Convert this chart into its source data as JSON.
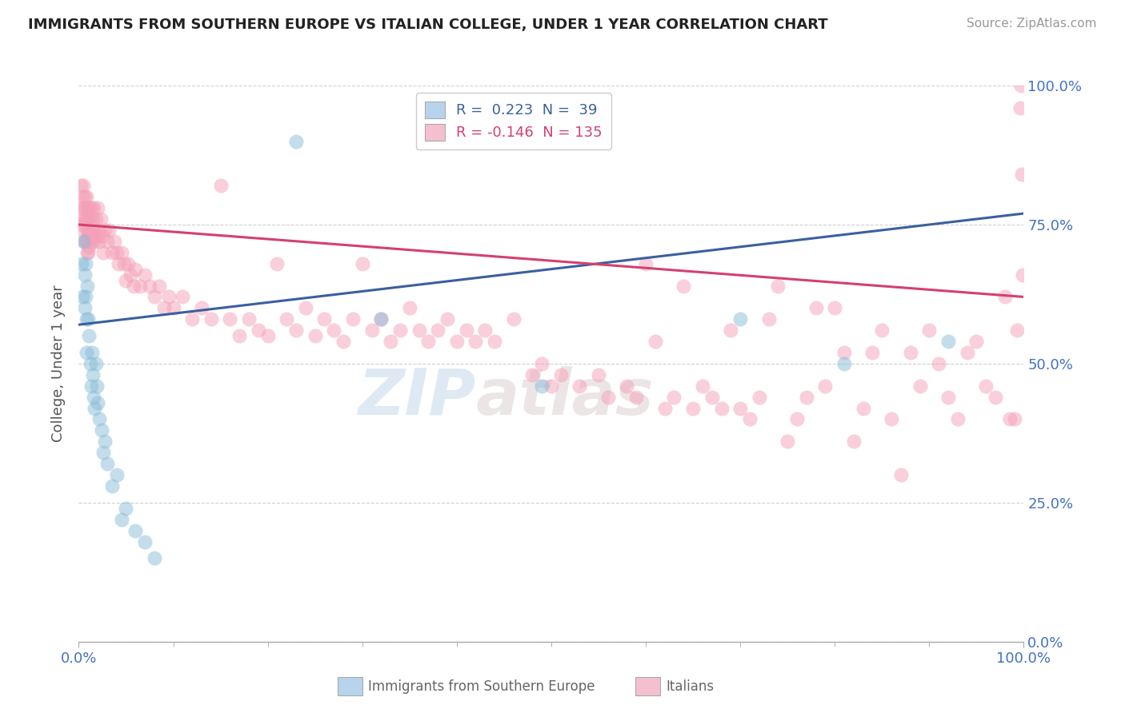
{
  "title": "IMMIGRANTS FROM SOUTHERN EUROPE VS ITALIAN COLLEGE, UNDER 1 YEAR CORRELATION CHART",
  "source": "Source: ZipAtlas.com",
  "ylabel": "College, Under 1 year",
  "xlim": [
    0.0,
    1.0
  ],
  "ylim": [
    0.0,
    1.0
  ],
  "ytick_values": [
    0.0,
    0.25,
    0.5,
    0.75,
    1.0
  ],
  "watermark_zip": "ZIP",
  "watermark_atlas": "atlas",
  "blue_scatter": [
    [
      0.003,
      0.68
    ],
    [
      0.004,
      0.62
    ],
    [
      0.005,
      0.72
    ],
    [
      0.006,
      0.66
    ],
    [
      0.006,
      0.6
    ],
    [
      0.007,
      0.68
    ],
    [
      0.007,
      0.62
    ],
    [
      0.008,
      0.58
    ],
    [
      0.008,
      0.52
    ],
    [
      0.009,
      0.64
    ],
    [
      0.01,
      0.58
    ],
    [
      0.011,
      0.55
    ],
    [
      0.012,
      0.5
    ],
    [
      0.013,
      0.46
    ],
    [
      0.014,
      0.52
    ],
    [
      0.015,
      0.48
    ],
    [
      0.016,
      0.44
    ],
    [
      0.017,
      0.42
    ],
    [
      0.018,
      0.5
    ],
    [
      0.019,
      0.46
    ],
    [
      0.02,
      0.43
    ],
    [
      0.022,
      0.4
    ],
    [
      0.024,
      0.38
    ],
    [
      0.026,
      0.34
    ],
    [
      0.028,
      0.36
    ],
    [
      0.03,
      0.32
    ],
    [
      0.035,
      0.28
    ],
    [
      0.04,
      0.3
    ],
    [
      0.045,
      0.22
    ],
    [
      0.05,
      0.24
    ],
    [
      0.06,
      0.2
    ],
    [
      0.07,
      0.18
    ],
    [
      0.08,
      0.15
    ],
    [
      0.23,
      0.9
    ],
    [
      0.32,
      0.58
    ],
    [
      0.49,
      0.46
    ],
    [
      0.7,
      0.58
    ],
    [
      0.81,
      0.5
    ],
    [
      0.92,
      0.54
    ]
  ],
  "pink_scatter": [
    [
      0.002,
      0.82
    ],
    [
      0.003,
      0.78
    ],
    [
      0.003,
      0.75
    ],
    [
      0.004,
      0.8
    ],
    [
      0.004,
      0.76
    ],
    [
      0.005,
      0.82
    ],
    [
      0.005,
      0.78
    ],
    [
      0.005,
      0.74
    ],
    [
      0.006,
      0.8
    ],
    [
      0.006,
      0.76
    ],
    [
      0.006,
      0.72
    ],
    [
      0.007,
      0.78
    ],
    [
      0.007,
      0.75
    ],
    [
      0.007,
      0.72
    ],
    [
      0.008,
      0.8
    ],
    [
      0.008,
      0.76
    ],
    [
      0.008,
      0.72
    ],
    [
      0.009,
      0.78
    ],
    [
      0.009,
      0.74
    ],
    [
      0.009,
      0.7
    ],
    [
      0.01,
      0.76
    ],
    [
      0.01,
      0.73
    ],
    [
      0.01,
      0.7
    ],
    [
      0.011,
      0.78
    ],
    [
      0.011,
      0.74
    ],
    [
      0.011,
      0.71
    ],
    [
      0.012,
      0.76
    ],
    [
      0.012,
      0.73
    ],
    [
      0.013,
      0.78
    ],
    [
      0.013,
      0.74
    ],
    [
      0.014,
      0.72
    ],
    [
      0.015,
      0.76
    ],
    [
      0.015,
      0.73
    ],
    [
      0.016,
      0.78
    ],
    [
      0.016,
      0.74
    ],
    [
      0.017,
      0.72
    ],
    [
      0.018,
      0.76
    ],
    [
      0.019,
      0.73
    ],
    [
      0.02,
      0.78
    ],
    [
      0.021,
      0.74
    ],
    [
      0.022,
      0.72
    ],
    [
      0.023,
      0.76
    ],
    [
      0.025,
      0.73
    ],
    [
      0.026,
      0.7
    ],
    [
      0.028,
      0.74
    ],
    [
      0.03,
      0.72
    ],
    [
      0.032,
      0.74
    ],
    [
      0.035,
      0.7
    ],
    [
      0.038,
      0.72
    ],
    [
      0.04,
      0.7
    ],
    [
      0.042,
      0.68
    ],
    [
      0.045,
      0.7
    ],
    [
      0.048,
      0.68
    ],
    [
      0.05,
      0.65
    ],
    [
      0.052,
      0.68
    ],
    [
      0.055,
      0.66
    ],
    [
      0.058,
      0.64
    ],
    [
      0.06,
      0.67
    ],
    [
      0.065,
      0.64
    ],
    [
      0.07,
      0.66
    ],
    [
      0.075,
      0.64
    ],
    [
      0.08,
      0.62
    ],
    [
      0.085,
      0.64
    ],
    [
      0.09,
      0.6
    ],
    [
      0.095,
      0.62
    ],
    [
      0.1,
      0.6
    ],
    [
      0.11,
      0.62
    ],
    [
      0.12,
      0.58
    ],
    [
      0.13,
      0.6
    ],
    [
      0.14,
      0.58
    ],
    [
      0.15,
      0.82
    ],
    [
      0.16,
      0.58
    ],
    [
      0.17,
      0.55
    ],
    [
      0.18,
      0.58
    ],
    [
      0.19,
      0.56
    ],
    [
      0.2,
      0.55
    ],
    [
      0.21,
      0.68
    ],
    [
      0.22,
      0.58
    ],
    [
      0.23,
      0.56
    ],
    [
      0.24,
      0.6
    ],
    [
      0.25,
      0.55
    ],
    [
      0.26,
      0.58
    ],
    [
      0.27,
      0.56
    ],
    [
      0.28,
      0.54
    ],
    [
      0.29,
      0.58
    ],
    [
      0.3,
      0.68
    ],
    [
      0.31,
      0.56
    ],
    [
      0.32,
      0.58
    ],
    [
      0.33,
      0.54
    ],
    [
      0.34,
      0.56
    ],
    [
      0.35,
      0.6
    ],
    [
      0.36,
      0.56
    ],
    [
      0.37,
      0.54
    ],
    [
      0.38,
      0.56
    ],
    [
      0.39,
      0.58
    ],
    [
      0.4,
      0.54
    ],
    [
      0.41,
      0.56
    ],
    [
      0.42,
      0.54
    ],
    [
      0.43,
      0.56
    ],
    [
      0.44,
      0.54
    ],
    [
      0.46,
      0.58
    ],
    [
      0.48,
      0.48
    ],
    [
      0.49,
      0.5
    ],
    [
      0.5,
      0.46
    ],
    [
      0.51,
      0.48
    ],
    [
      0.53,
      0.46
    ],
    [
      0.55,
      0.48
    ],
    [
      0.56,
      0.44
    ],
    [
      0.58,
      0.46
    ],
    [
      0.59,
      0.44
    ],
    [
      0.6,
      0.68
    ],
    [
      0.61,
      0.54
    ],
    [
      0.62,
      0.42
    ],
    [
      0.63,
      0.44
    ],
    [
      0.64,
      0.64
    ],
    [
      0.65,
      0.42
    ],
    [
      0.66,
      0.46
    ],
    [
      0.67,
      0.44
    ],
    [
      0.68,
      0.42
    ],
    [
      0.69,
      0.56
    ],
    [
      0.7,
      0.42
    ],
    [
      0.71,
      0.4
    ],
    [
      0.72,
      0.44
    ],
    [
      0.73,
      0.58
    ],
    [
      0.74,
      0.64
    ],
    [
      0.75,
      0.36
    ],
    [
      0.76,
      0.4
    ],
    [
      0.77,
      0.44
    ],
    [
      0.78,
      0.6
    ],
    [
      0.79,
      0.46
    ],
    [
      0.8,
      0.6
    ],
    [
      0.81,
      0.52
    ],
    [
      0.82,
      0.36
    ],
    [
      0.83,
      0.42
    ],
    [
      0.84,
      0.52
    ],
    [
      0.85,
      0.56
    ],
    [
      0.86,
      0.4
    ],
    [
      0.87,
      0.3
    ],
    [
      0.88,
      0.52
    ],
    [
      0.89,
      0.46
    ],
    [
      0.9,
      0.56
    ],
    [
      0.91,
      0.5
    ],
    [
      0.92,
      0.44
    ],
    [
      0.93,
      0.4
    ],
    [
      0.94,
      0.52
    ],
    [
      0.95,
      0.54
    ],
    [
      0.96,
      0.46
    ],
    [
      0.97,
      0.44
    ],
    [
      0.98,
      0.62
    ],
    [
      0.985,
      0.4
    ],
    [
      0.99,
      0.4
    ],
    [
      0.993,
      0.56
    ],
    [
      0.996,
      0.96
    ],
    [
      0.997,
      1.0
    ],
    [
      0.998,
      0.84
    ],
    [
      0.999,
      0.66
    ]
  ],
  "blue_line_x": [
    0.0,
    1.0
  ],
  "blue_line_y": [
    0.57,
    0.77
  ],
  "pink_line_x": [
    0.0,
    1.0
  ],
  "pink_line_y": [
    0.75,
    0.62
  ],
  "blue_dot_color": "#89bdd8",
  "pink_dot_color": "#f4a0b8",
  "blue_line_color": "#3a5fa0",
  "pink_line_color": "#d44070",
  "legend_blue_fill": "#b8d4ec",
  "legend_pink_fill": "#f4c0d0",
  "title_color": "#222222",
  "source_color": "#999999",
  "grid_color": "#d0d0d0",
  "axis_label_color": "#4472c4",
  "bottom_label_color": "#666666"
}
